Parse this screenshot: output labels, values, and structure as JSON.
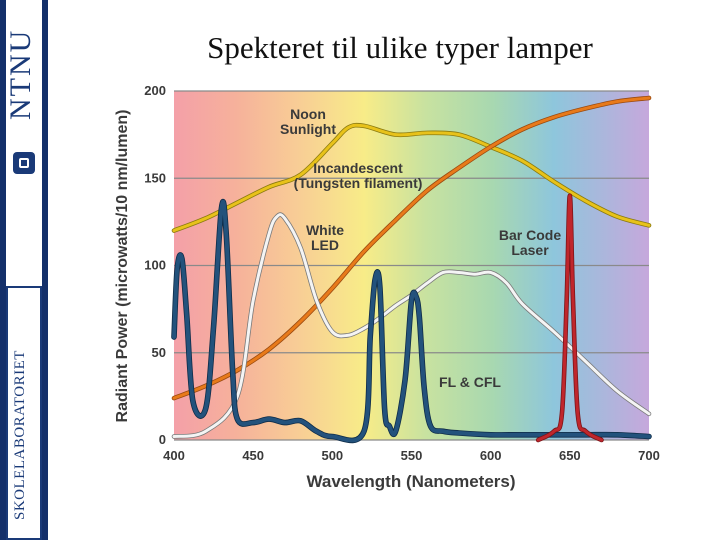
{
  "slide": {
    "title": "Spekteret til ulike typer lamper",
    "sidebar": {
      "logo_text": "NTNU",
      "section_text": "SKOLELABORATORIET"
    }
  },
  "chart_data": {
    "type": "line",
    "xlabel": "Wavelength (Nanometers)",
    "ylabel": "Radiant Power (microwatts/10 nm/lumen)",
    "xlim": [
      400,
      700
    ],
    "ylim": [
      0,
      200
    ],
    "x_ticks": [
      400,
      450,
      500,
      550,
      600,
      650,
      700
    ],
    "y_ticks": [
      0,
      50,
      100,
      150,
      200
    ],
    "grid": "horizontal",
    "background": "visible spectrum gradient",
    "series": [
      {
        "name": "Noon Sunlight",
        "color": "#e8c21a",
        "x": [
          400,
          420,
          440,
          460,
          480,
          500,
          510,
          520,
          540,
          560,
          580,
          600,
          620,
          640,
          660,
          680,
          700
        ],
        "y": [
          120,
          127,
          136,
          145,
          152,
          170,
          179,
          180,
          175,
          176,
          175,
          168,
          160,
          148,
          137,
          128,
          123
        ]
      },
      {
        "name": "Incandescent (Tungsten filament)",
        "color": "#e87a1a",
        "x": [
          400,
          420,
          440,
          460,
          480,
          500,
          520,
          540,
          560,
          580,
          600,
          620,
          640,
          660,
          680,
          700
        ],
        "y": [
          24,
          31,
          40,
          52,
          68,
          87,
          108,
          126,
          143,
          156,
          168,
          178,
          185,
          190,
          194,
          196
        ]
      },
      {
        "name": "White LED",
        "color": "#f4f4f4",
        "x": [
          400,
          420,
          440,
          450,
          460,
          465,
          470,
          480,
          490,
          500,
          510,
          520,
          530,
          540,
          550,
          560,
          570,
          580,
          590,
          600,
          610,
          620,
          640,
          660,
          680,
          700
        ],
        "y": [
          2,
          5,
          25,
          80,
          118,
          128,
          127,
          110,
          80,
          62,
          60,
          64,
          70,
          77,
          83,
          90,
          96,
          96,
          95,
          96,
          90,
          78,
          62,
          45,
          28,
          15
        ]
      },
      {
        "name": "FL & CFL",
        "color": "#23527c",
        "x": [
          400,
          402,
          405,
          408,
          412,
          420,
          425,
          430,
          433,
          437,
          440,
          450,
          460,
          470,
          480,
          490,
          500,
          520,
          524,
          527,
          530,
          533,
          536,
          540,
          546,
          550,
          553,
          555,
          558,
          562,
          570,
          580,
          600,
          620,
          640,
          660,
          680,
          700
        ],
        "y": [
          59,
          98,
          104,
          72,
          22,
          18,
          65,
          133,
          118,
          40,
          12,
          10,
          12,
          10,
          11,
          5,
          2,
          5,
          60,
          92,
          88,
          18,
          8,
          5,
          35,
          80,
          82,
          70,
          30,
          8,
          5,
          4,
          3,
          3,
          3,
          3,
          3,
          2
        ]
      },
      {
        "name": "Bar Code Laser",
        "color": "#c0262c",
        "x": [
          630,
          640,
          645,
          648,
          650,
          652,
          655,
          660,
          670
        ],
        "y": [
          0,
          5,
          15,
          80,
          140,
          80,
          15,
          5,
          0
        ]
      }
    ],
    "annotations": [
      {
        "text": "Noon",
        "x": 590,
        "y": 185
      },
      {
        "text": "Sunlight",
        "x": 590,
        "y": 176
      },
      {
        "text": "Incandescent",
        "x": 660,
        "y": 157
      },
      {
        "text": "(Tungsten filament)",
        "x": 660,
        "y": 147
      },
      {
        "text": "White",
        "x": 510,
        "y": 119
      },
      {
        "text": "LED",
        "x": 510,
        "y": 109
      },
      {
        "text": "Bar Code",
        "x": 770,
        "y": 114
      },
      {
        "text": "Laser",
        "x": 770,
        "y": 104
      },
      {
        "text": "FL & CFL",
        "x": 565,
        "y": 32
      }
    ]
  }
}
